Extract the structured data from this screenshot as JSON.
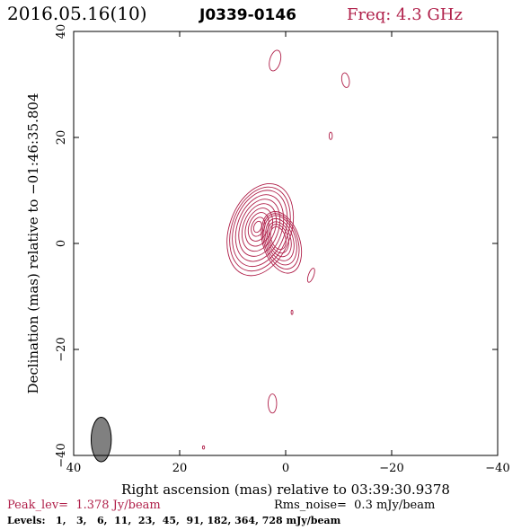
{
  "chart_data": {
    "type": "contour",
    "title_date": "2016.05.16(10)",
    "title_source": "J0339-0146",
    "title_freq": "Freq: 4.3 GHz",
    "xlabel": "Right ascension (mas) relative to 03:39:30.9378",
    "ylabel": "Declination (mas) relative to −01:46:35.804",
    "xlim": [
      40,
      -40
    ],
    "ylim": [
      -40,
      40
    ],
    "xticks": [
      40,
      20,
      0,
      -20,
      -40
    ],
    "yticks": [
      -40,
      -20,
      0,
      20,
      40
    ],
    "xtick_labels": [
      "40",
      "20",
      "0",
      "−20",
      "−40"
    ],
    "ytick_labels": [
      "−40",
      "−20",
      "0",
      "20",
      "40"
    ],
    "peak_label": "Peak_lev=  1.378 Jy/beam",
    "rms_label": "Rms_noise=  0.3 mJy/beam",
    "levels_label": "Levels:   1,   3,   6,  11,  23,  45,  91, 182, 364, 728 mJy/beam",
    "contour_color": "#b0204a",
    "beam": {
      "x": 34.8,
      "y": -37.0,
      "major": 4.2,
      "minor": 1.9,
      "pa": 0
    },
    "core": {
      "x": 1.2,
      "y": 0.8
    },
    "contours": [
      {
        "level": 1,
        "ra": [
          5.8,
          3.2
        ],
        "rb": [
          5.6,
          6.0
        ],
        "dx": 0.0,
        "dy": 0.0
      },
      {
        "level": 3,
        "ra": [
          5.3,
          2.9
        ],
        "rb": [
          5.1,
          5.4
        ],
        "dx": 0.1,
        "dy": 0.2
      },
      {
        "level": 6,
        "ra": [
          4.8,
          2.6
        ],
        "rb": [
          4.6,
          4.8
        ],
        "dx": 0.2,
        "dy": 0.4
      },
      {
        "level": 11,
        "ra": [
          4.2,
          2.3
        ],
        "rb": [
          4.0,
          4.1
        ],
        "dx": 0.3,
        "dy": 0.5
      },
      {
        "level": 23,
        "ra": [
          3.6,
          2.0
        ],
        "rb": [
          3.4,
          3.4
        ],
        "dx": 0.4,
        "dy": 0.6
      },
      {
        "level": 45,
        "ra": [
          3.0,
          1.7
        ],
        "rb": [
          2.8,
          2.8
        ],
        "dx": 0.5,
        "dy": 0.7
      },
      {
        "level": 91,
        "ra": [
          2.4,
          1.4
        ],
        "rb": [
          2.2,
          2.2
        ],
        "dx": 0.6,
        "dy": 0.8
      },
      {
        "level": 182,
        "ra": [
          1.8,
          1.1
        ],
        "rb": [
          1.6,
          1.6
        ],
        "dx": 0.8,
        "dy": 0.9
      },
      {
        "level": 364,
        "ra": [
          1.2,
          0.8
        ],
        "rb": [
          1.1,
          1.1
        ],
        "dx": 1.0,
        "dy": 0.9
      },
      {
        "level": 728,
        "ra": [
          0.7,
          0.5
        ],
        "rb": [
          0.6,
          0.6
        ],
        "dx": 1.2,
        "dy": 0.9
      }
    ],
    "blobs": [
      {
        "x": 2.0,
        "y": 34.5,
        "w": 1.0,
        "h": 2.0,
        "rot": 15
      },
      {
        "x": -11.3,
        "y": 30.8,
        "w": 0.7,
        "h": 1.4,
        "rot": -10
      },
      {
        "x": -8.5,
        "y": 20.3,
        "w": 0.3,
        "h": 0.7,
        "rot": 0
      },
      {
        "x": -4.8,
        "y": -6.0,
        "w": 0.5,
        "h": 1.4,
        "rot": 20
      },
      {
        "x": -1.2,
        "y": -13.0,
        "w": 0.1,
        "h": 0.4,
        "rot": 0
      },
      {
        "x": 2.5,
        "y": -30.2,
        "w": 0.8,
        "h": 1.8,
        "rot": 0
      },
      {
        "x": 15.5,
        "y": -38.5,
        "w": 0.2,
        "h": 0.3,
        "rot": 0
      }
    ]
  }
}
